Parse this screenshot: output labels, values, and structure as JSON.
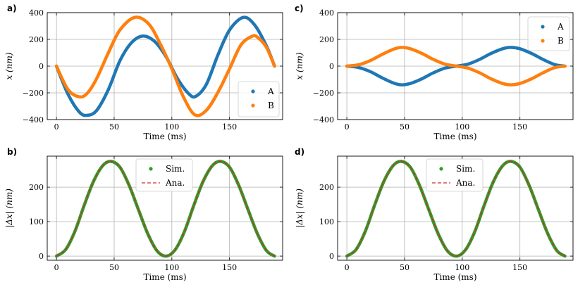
{
  "chart_data": [
    {
      "panel": "a)",
      "type": "line",
      "xlabel": "Time (ms)",
      "ylabel": "x (nm)",
      "xlim": [
        -8,
        196
      ],
      "ylim": [
        -400,
        400
      ],
      "xticks": [
        0,
        50,
        100,
        150
      ],
      "yticks": [
        -400,
        -200,
        0,
        200,
        400
      ],
      "x_tick_labels": [
        "0",
        "50",
        "100",
        "150"
      ],
      "y_tick_labels": [
        "−400",
        "−200",
        "0",
        "200",
        "400"
      ],
      "grid": true,
      "legend_position": "lower-right",
      "series": [
        {
          "name": "A",
          "color": "#1f77b4",
          "style": "dots",
          "x": [
            0,
            10,
            20,
            27,
            35,
            45,
            55,
            65,
            75,
            85,
            95,
            105,
            115,
            121,
            130,
            140,
            150,
            162,
            172,
            182,
            189
          ],
          "y": [
            0,
            -210,
            -345,
            -368,
            -330,
            -175,
            40,
            175,
            225,
            185,
            70,
            -95,
            -210,
            -225,
            -135,
            85,
            270,
            365,
            305,
            150,
            0
          ]
        },
        {
          "name": "B",
          "color": "#ff7f0e",
          "style": "dots",
          "x": [
            0,
            10,
            20,
            27,
            35,
            45,
            55,
            68,
            80,
            90,
            100,
            110,
            120,
            130,
            140,
            150,
            160,
            170,
            175,
            182,
            189
          ],
          "y": [
            0,
            -175,
            -230,
            -200,
            -90,
            100,
            270,
            365,
            315,
            165,
            -20,
            -230,
            -365,
            -330,
            -195,
            -20,
            160,
            225,
            210,
            140,
            0
          ]
        }
      ]
    },
    {
      "panel": "c)",
      "type": "line",
      "xlabel": "Time (ms)",
      "ylabel": "x (nm)",
      "xlim": [
        -8,
        196
      ],
      "ylim": [
        -400,
        400
      ],
      "xticks": [
        0,
        50,
        100,
        150
      ],
      "yticks": [
        -400,
        -200,
        0,
        200,
        400
      ],
      "x_tick_labels": [
        "0",
        "50",
        "100",
        "150"
      ],
      "y_tick_labels": [
        "−400",
        "−200",
        "0",
        "200",
        "400"
      ],
      "grid": true,
      "legend_position": "upper-right",
      "series": [
        {
          "name": "A",
          "color": "#1f77b4",
          "style": "dots",
          "x": [
            0,
            10,
            20,
            30,
            40,
            47,
            55,
            65,
            75,
            85,
            95,
            105,
            115,
            125,
            135,
            142,
            150,
            160,
            170,
            180,
            189
          ],
          "y": [
            0,
            -10,
            -40,
            -85,
            -125,
            -140,
            -130,
            -95,
            -50,
            -15,
            0,
            15,
            50,
            95,
            130,
            140,
            130,
            95,
            50,
            12,
            0
          ]
        },
        {
          "name": "B",
          "color": "#ff7f0e",
          "style": "dots",
          "x": [
            0,
            10,
            20,
            30,
            40,
            47,
            55,
            65,
            75,
            85,
            95,
            105,
            115,
            125,
            135,
            142,
            150,
            160,
            170,
            180,
            189
          ],
          "y": [
            0,
            10,
            40,
            85,
            125,
            140,
            130,
            95,
            50,
            15,
            0,
            -15,
            -50,
            -95,
            -130,
            -140,
            -130,
            -95,
            -50,
            -12,
            0
          ]
        }
      ]
    },
    {
      "panel": "b)",
      "type": "line",
      "xlabel": "Time (ms)",
      "ylabel": "|Δx| (nm)",
      "xlim": [
        -8,
        196
      ],
      "ylim": [
        -12,
        290
      ],
      "xticks": [
        0,
        50,
        100,
        150
      ],
      "yticks": [
        0,
        100,
        200
      ],
      "x_tick_labels": [
        "0",
        "50",
        "100",
        "150"
      ],
      "y_tick_labels": [
        "0",
        "100",
        "200"
      ],
      "grid": true,
      "legend_position": "upper-center",
      "series": [
        {
          "name": "Sim.",
          "color": "#2ca02c",
          "style": "dots",
          "x": [
            0,
            8,
            16,
            24,
            32,
            40,
            47,
            55,
            63,
            71,
            79,
            87,
            95,
            103,
            111,
            119,
            127,
            135,
            142,
            150,
            158,
            166,
            174,
            182,
            189
          ],
          "y": [
            0,
            19,
            72,
            147,
            216,
            262,
            275,
            258,
            205,
            135,
            66,
            16,
            0,
            19,
            72,
            147,
            216,
            262,
            275,
            258,
            205,
            135,
            66,
            16,
            0
          ]
        },
        {
          "name": "Ana.",
          "color": "#d62728",
          "style": "dashed",
          "x": [
            0,
            8,
            16,
            24,
            32,
            40,
            47,
            55,
            63,
            71,
            79,
            87,
            95,
            103,
            111,
            119,
            127,
            135,
            142,
            150,
            158,
            166,
            174,
            182,
            189
          ],
          "y": [
            0,
            19,
            72,
            147,
            216,
            262,
            275,
            258,
            205,
            135,
            66,
            16,
            0,
            19,
            72,
            147,
            216,
            262,
            275,
            258,
            205,
            135,
            66,
            16,
            0
          ]
        }
      ]
    },
    {
      "panel": "d)",
      "type": "line",
      "xlabel": "Time (ms)",
      "ylabel": "|Δx| (nm)",
      "xlim": [
        -8,
        196
      ],
      "ylim": [
        -12,
        290
      ],
      "xticks": [
        0,
        50,
        100,
        150
      ],
      "yticks": [
        0,
        100,
        200
      ],
      "x_tick_labels": [
        "0",
        "50",
        "100",
        "150"
      ],
      "y_tick_labels": [
        "0",
        "100",
        "200"
      ],
      "grid": true,
      "legend_position": "upper-center",
      "series": [
        {
          "name": "Sim.",
          "color": "#2ca02c",
          "style": "dots",
          "x": [
            0,
            8,
            16,
            24,
            32,
            40,
            47,
            55,
            63,
            71,
            79,
            87,
            95,
            103,
            111,
            119,
            127,
            135,
            142,
            150,
            158,
            166,
            174,
            182,
            189
          ],
          "y": [
            0,
            19,
            72,
            147,
            216,
            262,
            275,
            258,
            205,
            135,
            66,
            16,
            0,
            19,
            72,
            147,
            216,
            262,
            275,
            258,
            205,
            135,
            66,
            16,
            0
          ]
        },
        {
          "name": "Ana.",
          "color": "#d62728",
          "style": "dashed",
          "x": [
            0,
            8,
            16,
            24,
            32,
            40,
            47,
            55,
            63,
            71,
            79,
            87,
            95,
            103,
            111,
            119,
            127,
            135,
            142,
            150,
            158,
            166,
            174,
            182,
            189
          ],
          "y": [
            0,
            19,
            72,
            147,
            216,
            262,
            275,
            258,
            205,
            135,
            66,
            16,
            0,
            19,
            72,
            147,
            216,
            262,
            275,
            258,
            205,
            135,
            66,
            16,
            0
          ]
        }
      ]
    }
  ]
}
